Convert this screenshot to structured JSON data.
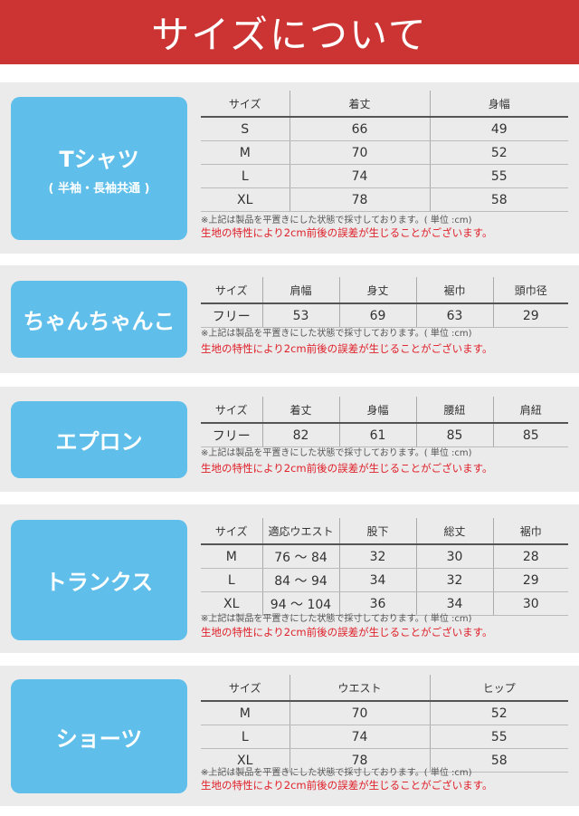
{
  "title": "サイズについて",
  "colors": {
    "header": "#cc3333",
    "label": "#5fbfea",
    "warning": "#e0202a"
  },
  "note": "※上記は製品を平置きにした状態で採寸しております。( 単位 :cm)",
  "warning": "生地の特性により2cm前後の誤差が生じることがございます。",
  "sections": [
    {
      "name": "Tシャツ",
      "sub": "( 半袖・長袖共通 )",
      "headers": [
        "サイズ",
        "着丈",
        "身幅"
      ],
      "rows": [
        [
          "S",
          "66",
          "49"
        ],
        [
          "M",
          "70",
          "52"
        ],
        [
          "L",
          "74",
          "55"
        ],
        [
          "XL",
          "78",
          "58"
        ]
      ]
    },
    {
      "name": "ちゃんちゃんこ",
      "headers": [
        "サイズ",
        "肩幅",
        "身丈",
        "裾巾",
        "頭巾径"
      ],
      "rows": [
        [
          "フリー",
          "53",
          "69",
          "63",
          "29"
        ]
      ]
    },
    {
      "name": "エプロン",
      "headers": [
        "サイズ",
        "着丈",
        "身幅",
        "腰紐",
        "肩紐"
      ],
      "rows": [
        [
          "フリー",
          "82",
          "61",
          "85",
          "85"
        ]
      ]
    },
    {
      "name": "トランクス",
      "headers": [
        "サイズ",
        "適応ウエスト",
        "股下",
        "総丈",
        "裾巾"
      ],
      "rows": [
        [
          "M",
          "76 ～ 84",
          "32",
          "30",
          "28"
        ],
        [
          "L",
          "84 ～ 94",
          "34",
          "32",
          "29"
        ],
        [
          "XL",
          "94 ～ 104",
          "36",
          "34",
          "30"
        ]
      ]
    },
    {
      "name": "ショーツ",
      "headers": [
        "サイズ",
        "ウエスト",
        "ヒップ"
      ],
      "rows": [
        [
          "M",
          "70",
          "52"
        ],
        [
          "L",
          "74",
          "55"
        ],
        [
          "XL",
          "78",
          "58"
        ]
      ]
    }
  ]
}
